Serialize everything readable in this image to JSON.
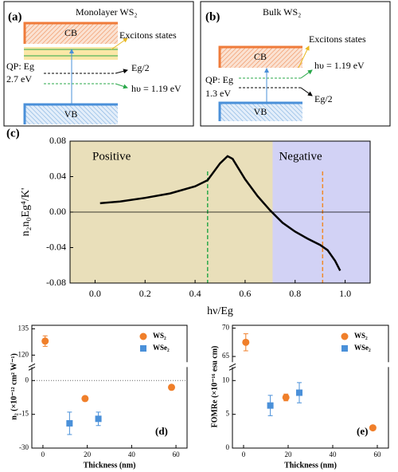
{
  "diagrams": {
    "a": {
      "label": "(a)",
      "title": "Monolayer WS₂",
      "cb": "CB",
      "excitons": "Excitons states",
      "qp": "QP: Eg",
      "gap": "2.7 eV",
      "half": "Eg/2",
      "photon": "hυ = 1.19 eV",
      "vb": "VB"
    },
    "b": {
      "label": "(b)",
      "title": "Bulk WS₂",
      "cb": "CB",
      "excitons": "Excitons states",
      "photon": "hυ = 1.19 eV",
      "qp": "QP: Eg",
      "gap": "1.3 eV",
      "half": "Eg/2",
      "vb": "VB"
    }
  },
  "chart_data": [
    {
      "type": "line",
      "label": "(c)",
      "xlabel": "hν/Eg",
      "ylabel": "n₂n₀Eg⁴/K'",
      "x": [
        0.02,
        0.1,
        0.2,
        0.3,
        0.4,
        0.45,
        0.5,
        0.53,
        0.55,
        0.6,
        0.65,
        0.7,
        0.75,
        0.8,
        0.85,
        0.9,
        0.93,
        0.96,
        0.98
      ],
      "values": [
        0.01,
        0.012,
        0.016,
        0.021,
        0.029,
        0.036,
        0.055,
        0.063,
        0.06,
        0.037,
        0.018,
        0.002,
        -0.012,
        -0.022,
        -0.03,
        -0.037,
        -0.043,
        -0.055,
        -0.066
      ],
      "color": "#000000",
      "regions": [
        {
          "label": "Positive",
          "from": -0.1,
          "to": 0.71,
          "color": "#e9dfba"
        },
        {
          "label": "Negative",
          "from": 0.71,
          "to": 1.1,
          "color": "#d2d2f5"
        }
      ],
      "vlines": [
        {
          "value": 0.45,
          "color": "#2aa84a"
        },
        {
          "value": 0.91,
          "color": "#f08a2a"
        }
      ],
      "hline": 0,
      "xlim": [
        -0.1,
        1.1
      ],
      "xticks": [
        {
          "value": 0,
          "label": "0.0"
        },
        0.2,
        0.4,
        0.6,
        0.8,
        {
          "value": 1,
          "label": "1.0"
        }
      ],
      "ylim": [
        -0.08,
        0.08
      ],
      "yticks": [
        -0.08,
        -0.04,
        {
          "value": 0,
          "label": "0.00"
        },
        0.04,
        0.08
      ]
    },
    {
      "type": "scatter",
      "label": "(d)",
      "xlabel": "Thickness (nm)",
      "ylabel": "n₂ (×10⁻¹² cm² W⁻¹)",
      "series": [
        {
          "name": "WS₂",
          "color": "#f07f2a",
          "marker": "circle",
          "x": [
            1,
            19,
            58
          ],
          "values": [
            128,
            -8,
            -3
          ],
          "errors": [
            3,
            1,
            1
          ]
        },
        {
          "name": "WSe₂",
          "color": "#4a90d9",
          "marker": "square",
          "x": [
            12,
            25
          ],
          "values": [
            -19,
            -17
          ],
          "errors": [
            5,
            3
          ]
        }
      ],
      "hline": 0,
      "xlim": [
        -5,
        65
      ],
      "xticks": [
        0,
        20,
        40,
        60
      ],
      "segments": [
        {
          "ylim": [
            -30,
            6
          ],
          "yticks": [
            -30,
            -15,
            0
          ]
        },
        {
          "ylim": [
            116,
            137
          ],
          "yticks": [
            120,
            135
          ]
        }
      ]
    },
    {
      "type": "scatter",
      "label": "(e)",
      "xlabel": "Thickness (nm)",
      "ylabel": "FOMRe (×10⁻¹⁶ esu cm)",
      "series": [
        {
          "name": "WS₂",
          "color": "#f07f2a",
          "marker": "circle",
          "x": [
            1,
            19,
            58
          ],
          "values": [
            67.5,
            7.5,
            3
          ],
          "errors": [
            1.5,
            0.5,
            0.2
          ]
        },
        {
          "name": "WSe₂",
          "color": "#4a90d9",
          "marker": "square",
          "x": [
            12,
            25
          ],
          "values": [
            6.3,
            8.2
          ],
          "errors": [
            1.5,
            1.5
          ]
        }
      ],
      "xlim": [
        -5,
        65
      ],
      "xticks": [
        0,
        20,
        40,
        60
      ],
      "segments": [
        {
          "ylim": [
            0,
            12
          ],
          "yticks": [
            0,
            5,
            10
          ]
        },
        {
          "ylim": [
            64,
            70.5
          ],
          "yticks": [
            65,
            70
          ]
        }
      ]
    }
  ]
}
